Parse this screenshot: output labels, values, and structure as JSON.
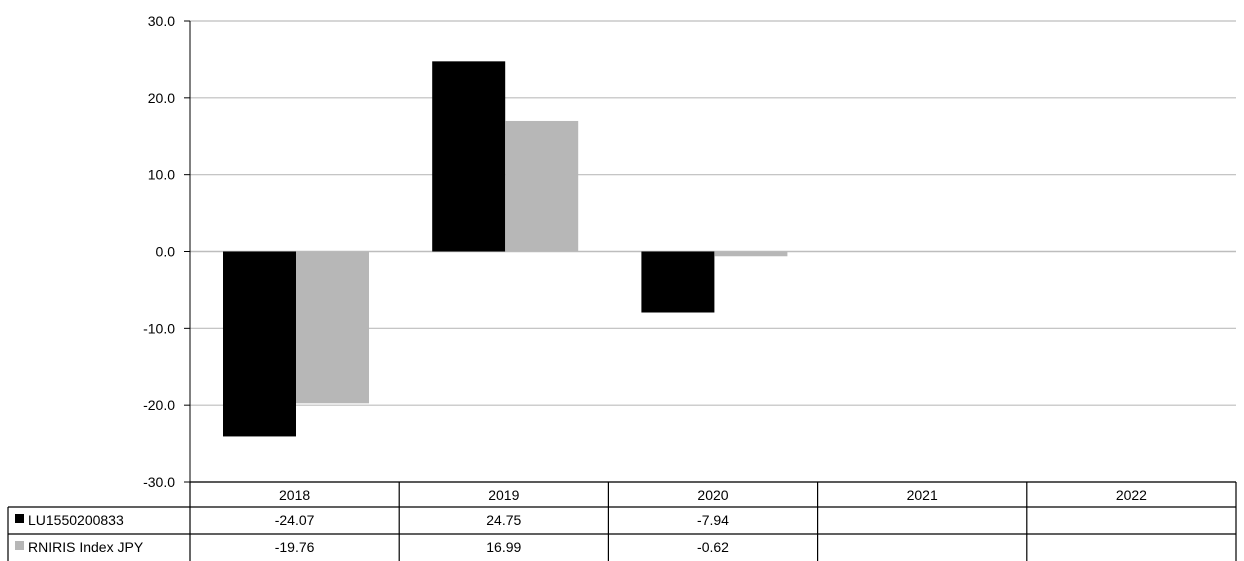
{
  "chart_data": {
    "type": "bar",
    "categories": [
      "2018",
      "2019",
      "2020",
      "2021",
      "2022"
    ],
    "series": [
      {
        "name": "LU1550200833",
        "values": [
          -24.07,
          24.75,
          -7.94,
          null,
          null
        ],
        "labels": [
          "-24.07",
          "24.75",
          "-7.94",
          "",
          ""
        ],
        "color": "#000000"
      },
      {
        "name": "RNIRIS Index JPY",
        "values": [
          -19.76,
          16.99,
          -0.62,
          null,
          null
        ],
        "labels": [
          "-19.76",
          "16.99",
          "-0.62",
          "",
          ""
        ],
        "color": "#b7b7b7"
      }
    ],
    "y_ticks": [
      "30.0",
      "20.0",
      "10.0",
      "0.0",
      "-10.0",
      "-20.0",
      "-30.0"
    ],
    "ylim": [
      -30,
      30
    ],
    "grid": true,
    "legend": "data-table"
  }
}
